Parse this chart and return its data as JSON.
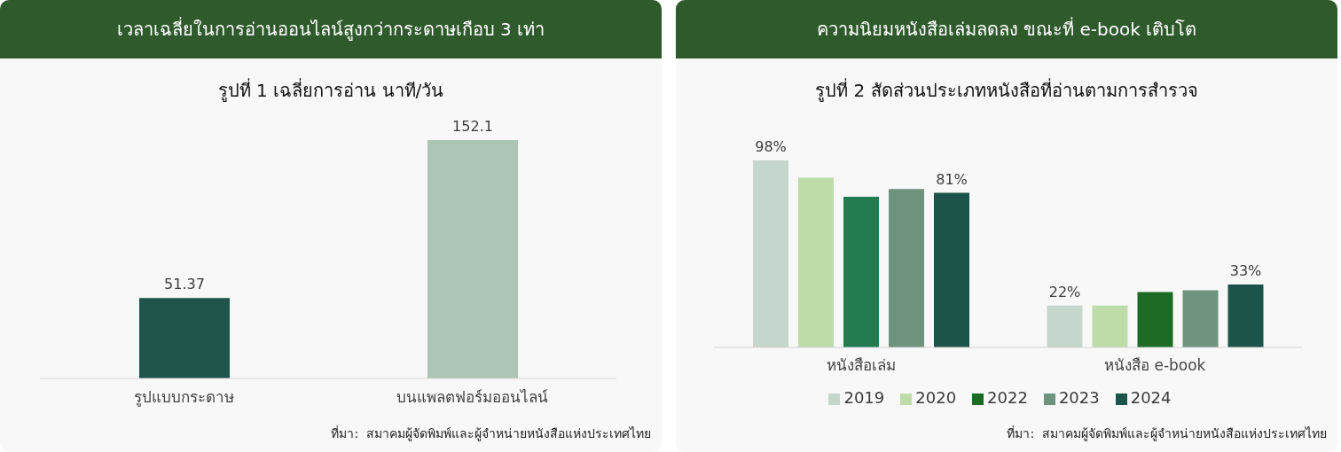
{
  "chart_data": [
    {
      "type": "bar",
      "title": "เวลาเฉลี่ยในการอ่านออนไลน์สูงกว่ากระดาษเกือบ 3 เท่า",
      "subtitle": "รูปที่ 1 เฉลี่ยการอ่าน นาที/วัน",
      "categories": [
        "รูปแบบกระดาษ",
        "บนแพลตฟอร์มออนไลน์"
      ],
      "values": [
        51.37,
        152.1
      ],
      "colors": [
        "#1e5449",
        "#adc5b7"
      ],
      "data_labels": true,
      "tick_labels": "x",
      "annotations": [
        "ที่มา:  สมาคมผู้จัดพิมพ์และผู้จำหน่ายหนังสือแห่งประเทศไทย"
      ]
    },
    {
      "type": "bar",
      "title": "ความนิยมหนังสือเล่มลดลง ขณะที่ e-book เติบโต",
      "subtitle": "รูปที่ 2 สัดส่วนประเภทหนังสือที่อ่านตามการสำรวจ",
      "categories": [
        "หนังสือเล่ม",
        "หนังสือ e-book"
      ],
      "series": [
        {
          "name": "2019",
          "color": "#c5d6cc",
          "values": [
            98,
            22
          ],
          "value_labels": [
            "98%",
            "22%"
          ]
        },
        {
          "name": "2020",
          "color": "#bddca9",
          "values": [
            89,
            22
          ]
        },
        {
          "name": "2022",
          "color": "#1d6b25",
          "colors": [
            "#237b50",
            "#1d6b25"
          ],
          "values": [
            79,
            29
          ]
        },
        {
          "name": "2023",
          "color": "#6d937f",
          "values": [
            83,
            30
          ]
        },
        {
          "name": "2024",
          "color": "#1d5449",
          "values": [
            81,
            33
          ],
          "value_labels": [
            "81%",
            "33%"
          ]
        }
      ],
      "legend": "bottom",
      "tick_labels": "x",
      "annotations": [
        "ที่มา:  สมาคมผู้จัดพิมพ์และผู้จำหน่ายหนังสือแห่งประเทศไทย"
      ]
    }
  ]
}
